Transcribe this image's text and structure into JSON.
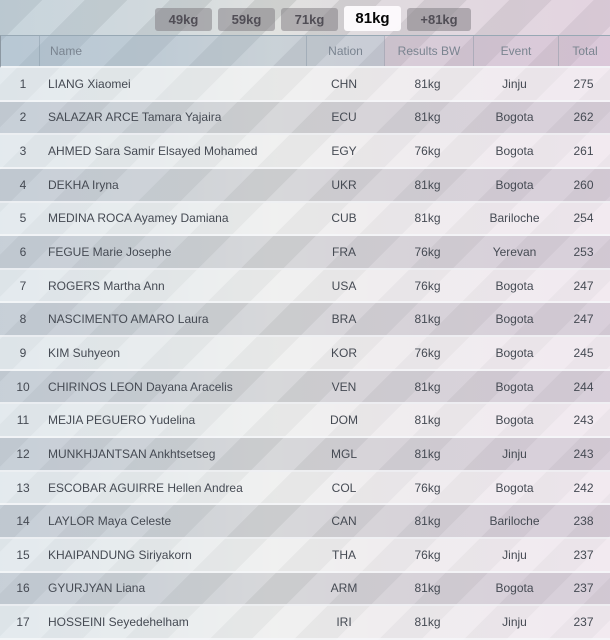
{
  "tabs": [
    {
      "label": "49kg",
      "active": false
    },
    {
      "label": "59kg",
      "active": false
    },
    {
      "label": "71kg",
      "active": false
    },
    {
      "label": "81kg",
      "active": true
    },
    {
      "label": "+81kg",
      "active": false
    }
  ],
  "table": {
    "columns": [
      "Name",
      "Nation",
      "Results BW",
      "Event",
      "Total"
    ],
    "rows": [
      {
        "rank": "1",
        "name": "LIANG Xiaomei",
        "nation": "CHN",
        "bw": "81kg",
        "event": "Jinju",
        "total": "275"
      },
      {
        "rank": "2",
        "name": "SALAZAR ARCE Tamara Yajaira",
        "nation": "ECU",
        "bw": "81kg",
        "event": "Bogota",
        "total": "262"
      },
      {
        "rank": "3",
        "name": "AHMED Sara Samir Elsayed Mohamed",
        "nation": "EGY",
        "bw": "76kg",
        "event": "Bogota",
        "total": "261"
      },
      {
        "rank": "4",
        "name": "DEKHA Iryna",
        "nation": "UKR",
        "bw": "81kg",
        "event": "Bogota",
        "total": "260"
      },
      {
        "rank": "5",
        "name": "MEDINA ROCA Ayamey Damiana",
        "nation": "CUB",
        "bw": "81kg",
        "event": "Bariloche",
        "total": "254"
      },
      {
        "rank": "6",
        "name": "FEGUE Marie Josephe",
        "nation": "FRA",
        "bw": "76kg",
        "event": "Yerevan",
        "total": "253"
      },
      {
        "rank": "7",
        "name": "ROGERS Martha Ann",
        "nation": "USA",
        "bw": "76kg",
        "event": "Bogota",
        "total": "247"
      },
      {
        "rank": "8",
        "name": "NASCIMENTO AMARO Laura",
        "nation": "BRA",
        "bw": "81kg",
        "event": "Bogota",
        "total": "247"
      },
      {
        "rank": "9",
        "name": "KIM Suhyeon",
        "nation": "KOR",
        "bw": "76kg",
        "event": "Bogota",
        "total": "245"
      },
      {
        "rank": "10",
        "name": "CHIRINOS LEON Dayana Aracelis",
        "nation": "VEN",
        "bw": "81kg",
        "event": "Bogota",
        "total": "244"
      },
      {
        "rank": "11",
        "name": "MEJIA PEGUERO Yudelina",
        "nation": "DOM",
        "bw": "81kg",
        "event": "Bogota",
        "total": "243"
      },
      {
        "rank": "12",
        "name": "MUNKHJANTSAN Ankhtsetseg",
        "nation": "MGL",
        "bw": "81kg",
        "event": "Jinju",
        "total": "243"
      },
      {
        "rank": "13",
        "name": "ESCOBAR AGUIRRE Hellen Andrea",
        "nation": "COL",
        "bw": "76kg",
        "event": "Bogota",
        "total": "242"
      },
      {
        "rank": "14",
        "name": "LAYLOR Maya Celeste",
        "nation": "CAN",
        "bw": "81kg",
        "event": "Bariloche",
        "total": "238"
      },
      {
        "rank": "15",
        "name": "KHAIPANDUNG Siriyakorn",
        "nation": "THA",
        "bw": "76kg",
        "event": "Jinju",
        "total": "237"
      },
      {
        "rank": "16",
        "name": "GYURJYAN Liana",
        "nation": "ARM",
        "bw": "81kg",
        "event": "Bogota",
        "total": "237"
      },
      {
        "rank": "17",
        "name": "HOSSEINI Seyedehelham",
        "nation": "IRI",
        "bw": "81kg",
        "event": "Jinju",
        "total": "237"
      }
    ]
  },
  "colors": {
    "active_tab_bg": "#fbfafc",
    "inactive_tab_bg": "#b2afb3",
    "header_blue_tint": "#aebfcd",
    "header_pink_tint": "#cfc0d2",
    "header_text": "#7a8490",
    "row_text": "#454a53",
    "stripe_light": "#e5e6e4",
    "stripe_dark": "#cfd1cf"
  }
}
